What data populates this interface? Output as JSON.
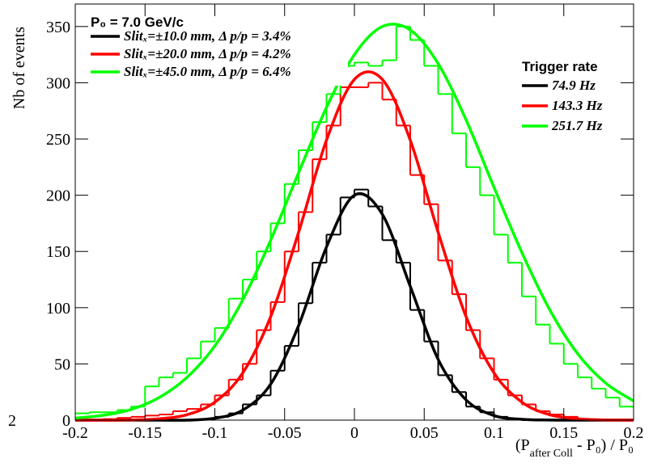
{
  "chart_data": {
    "type": "histogram",
    "legend_header": "P₀ = 7.0 GeV/c",
    "legend2_title": "Trigger rate",
    "ylabel": "Nb of events",
    "xlabel": [
      "(P",
      "after Coll",
      " - P₀) / P₀"
    ],
    "corner_label": "2",
    "bins": [
      -0.2,
      -0.19,
      -0.18,
      -0.17,
      -0.16,
      -0.15,
      -0.14,
      -0.13,
      -0.12,
      -0.11,
      -0.1,
      -0.09,
      -0.08,
      -0.07,
      -0.06,
      -0.05,
      -0.04,
      -0.03,
      -0.02,
      -0.01,
      0,
      0.01,
      0.02,
      0.03,
      0.04,
      0.05,
      0.06,
      0.07,
      0.08,
      0.09,
      0.1,
      0.11,
      0.12,
      0.13,
      0.14,
      0.15,
      0.16,
      0.17,
      0.18,
      0.19,
      0.2
    ],
    "fit_x": [
      -0.2,
      -0.18,
      -0.16,
      -0.14,
      -0.12,
      -0.1,
      -0.08,
      -0.06,
      -0.04,
      -0.02,
      0,
      0.02,
      0.04,
      0.06,
      0.08,
      0.1,
      0.12,
      0.14,
      0.16,
      0.18,
      0.2
    ],
    "series": [
      {
        "name": "Slitₓ=±10.0 mm, Δ p/p = 3.4%",
        "rate": "74.9 Hz",
        "color": "#000000",
        "values": [
          0,
          0,
          0,
          0,
          0,
          0,
          0,
          0,
          0,
          1,
          3,
          6,
          14,
          22,
          44,
          66,
          104,
          140,
          165,
          198,
          205,
          190,
          160,
          140,
          98,
          70,
          40,
          25,
          12,
          7,
          3,
          1,
          0,
          0,
          0,
          0,
          0,
          0,
          0,
          0
        ],
        "fit": [
          0,
          0,
          0,
          0,
          0,
          1.7,
          8.9,
          32,
          84,
          154,
          200,
          183,
          119,
          54,
          18,
          4.1,
          0.7,
          0.1,
          0,
          0,
          0
        ]
      },
      {
        "name": "Slitₓ=±20.0 mm, Δ p/p = 4.2%",
        "rate": "143.3 Hz",
        "color": "#ff0000",
        "values": [
          0,
          0,
          1,
          2,
          3,
          4,
          5,
          8,
          10,
          14,
          22,
          36,
          50,
          80,
          105,
          150,
          185,
          232,
          262,
          296,
          296,
          300,
          285,
          262,
          218,
          192,
          142,
          112,
          80,
          55,
          36,
          22,
          14,
          8,
          5,
          3,
          1,
          0,
          0,
          0
        ],
        "fit": [
          0,
          0,
          0.2,
          1.2,
          4.8,
          16,
          42,
          92,
          167,
          249,
          303,
          303,
          249,
          167,
          92,
          42,
          16,
          4.8,
          1.2,
          0.2,
          0
        ]
      },
      {
        "name": "Slitₓ=±45.0 mm, Δ p/p = 6.4%",
        "rate": "251.7 Hz",
        "color": "#00ff00",
        "values": [
          6,
          7,
          7,
          9,
          12,
          30,
          38,
          42,
          55,
          70,
          82,
          108,
          125,
          150,
          175,
          210,
          240,
          265,
          290,
          315,
          318,
          315,
          320,
          350,
          338,
          315,
          290,
          255,
          225,
          200,
          165,
          140,
          110,
          85,
          68,
          50,
          38,
          28,
          20,
          12
        ],
        "fit": [
          1.8,
          4.3,
          9.5,
          20,
          38,
          66,
          107,
          160,
          220,
          278,
          325,
          350,
          347,
          317,
          267,
          207,
          149,
          98,
          59,
          33,
          17
        ]
      }
    ],
    "xlim": [
      -0.2,
      0.2
    ],
    "xticks": [
      -0.2,
      -0.15,
      -0.1,
      -0.05,
      0,
      0.05,
      0.1,
      0.15,
      0.2
    ],
    "ylim": [
      0,
      370
    ],
    "yticks": [
      0,
      50,
      100,
      150,
      200,
      250,
      300,
      350
    ]
  }
}
